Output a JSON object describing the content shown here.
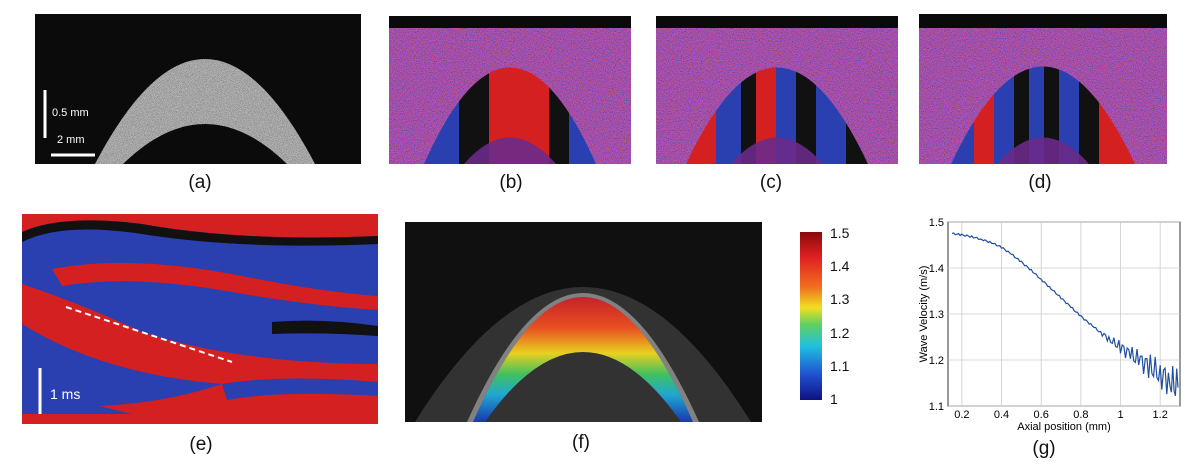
{
  "figure": {
    "panels": [
      {
        "id": "a",
        "caption": "(a)",
        "scale_vertical": "0.5 mm",
        "scale_horizontal": "2 mm"
      },
      {
        "id": "b",
        "caption": "(b)"
      },
      {
        "id": "c",
        "caption": "(c)"
      },
      {
        "id": "d",
        "caption": "(d)"
      },
      {
        "id": "e",
        "caption": "(e)",
        "scale_label": "1 ms"
      },
      {
        "id": "f",
        "caption": "(f)",
        "colorbar_ticks": [
          "1.5",
          "1.4",
          "1.3",
          "1.2",
          "1.1",
          "1"
        ]
      },
      {
        "id": "g",
        "caption": "(g)"
      }
    ],
    "colors": {
      "red": "#d42020",
      "blue": "#2a3fb0",
      "background": "#0a0a0a"
    }
  },
  "chart_data": {
    "type": "line",
    "xlabel": "Axial position (mm)",
    "ylabel": "Wave Velocity (m/s)",
    "xlim": [
      0.13,
      1.3
    ],
    "ylim": [
      1.1,
      1.5
    ],
    "xticks": [
      "0.2",
      "0.4",
      "0.6",
      "0.8",
      "1",
      "1.2"
    ],
    "yticks": [
      "1.1",
      "1.2",
      "1.3",
      "1.4",
      "1.5"
    ],
    "grid": true,
    "x": [
      0.15,
      0.2,
      0.25,
      0.3,
      0.35,
      0.4,
      0.45,
      0.5,
      0.55,
      0.6,
      0.65,
      0.7,
      0.75,
      0.8,
      0.85,
      0.9,
      0.95,
      1.0,
      1.05,
      1.1,
      1.15,
      1.2,
      1.25,
      1.29
    ],
    "y": [
      1.475,
      1.472,
      1.468,
      1.462,
      1.455,
      1.445,
      1.43,
      1.413,
      1.395,
      1.375,
      1.355,
      1.335,
      1.315,
      1.295,
      1.277,
      1.26,
      1.243,
      1.228,
      1.212,
      1.198,
      1.185,
      1.17,
      1.155,
      1.14
    ]
  }
}
